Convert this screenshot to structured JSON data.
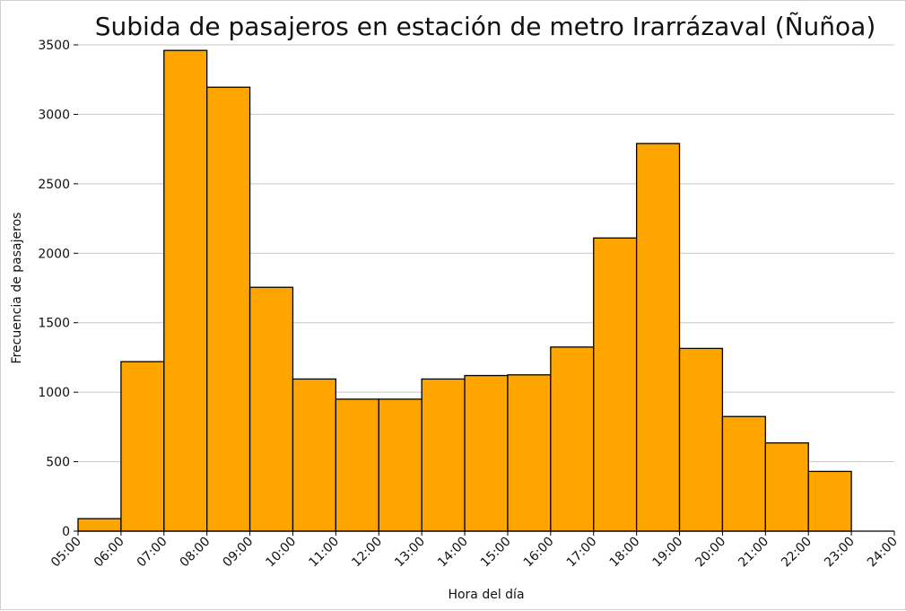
{
  "chart_data": {
    "type": "bar",
    "title": "Subida de pasajeros en estación de metro Irarrázaval (Ñuñoa)",
    "xlabel": "Hora del día",
    "ylabel": "Frecuencia de pasajeros",
    "categories": [
      "05:00",
      "06:00",
      "07:00",
      "08:00",
      "09:00",
      "10:00",
      "11:00",
      "12:00",
      "13:00",
      "14:00",
      "15:00",
      "16:00",
      "17:00",
      "18:00",
      "19:00",
      "20:00",
      "21:00",
      "22:00",
      "23:00"
    ],
    "x_ticks": [
      "05:00",
      "06:00",
      "07:00",
      "08:00",
      "09:00",
      "10:00",
      "11:00",
      "12:00",
      "13:00",
      "14:00",
      "15:00",
      "16:00",
      "17:00",
      "18:00",
      "19:00",
      "20:00",
      "21:00",
      "22:00",
      "23:00",
      "24:00"
    ],
    "values": [
      90,
      1220,
      3460,
      3195,
      1755,
      1095,
      950,
      950,
      1095,
      1120,
      1125,
      1325,
      2110,
      2790,
      1315,
      825,
      635,
      430,
      0
    ],
    "ylim": [
      0,
      3500
    ],
    "y_ticks": [
      0,
      500,
      1000,
      1500,
      2000,
      2500,
      3000,
      3500
    ],
    "grid": "horizontal",
    "colors": {
      "bar_fill": "#ffa500",
      "bar_edge": "#000000",
      "grid": "#c8c8c8"
    }
  }
}
